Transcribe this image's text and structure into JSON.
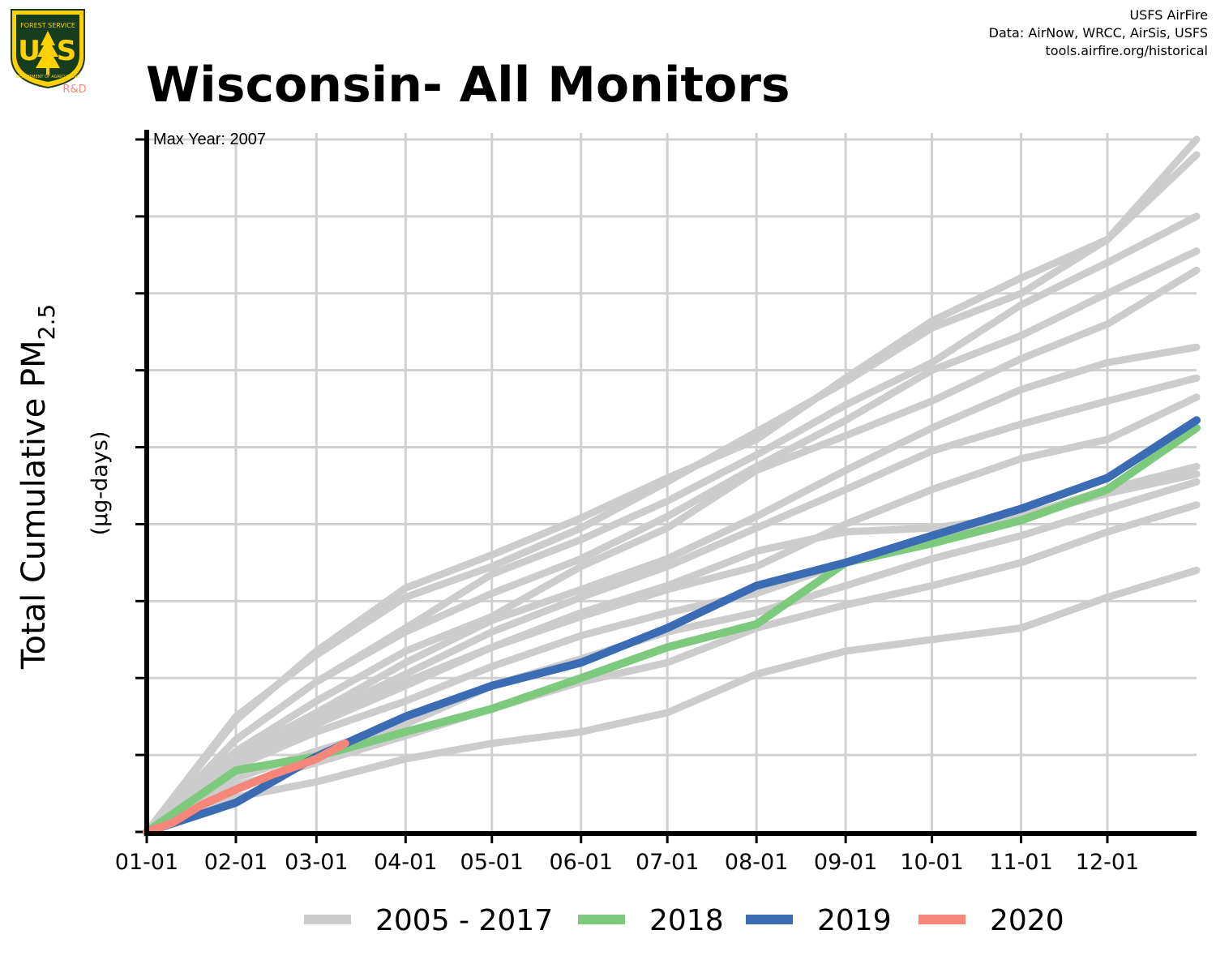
{
  "header": {
    "title": "Wisconsin- All Monitors",
    "credits": [
      "USFS AirFire",
      "Data: AirNow, WRCC, AirSis, USFS",
      "tools.airfire.org/historical"
    ]
  },
  "logo": {
    "text_top": "FOREST SERVICE",
    "text_main": "USFS shield",
    "text_bottom": "DEPARTMENT OF AGRICULTURE",
    "subtext": "R&D"
  },
  "chart_data": {
    "type": "line",
    "title": "Wisconsin- All Monitors",
    "annotation": "Max Year: 2007",
    "ylabel": "Total Cumulative PM2.5",
    "ylabel_main": "Total Cumulative PM",
    "ylabel_sub": "2.5",
    "ylabel_units": "(µg-days)",
    "xlabel": "",
    "x_ticks": [
      "01-01",
      "02-01",
      "03-01",
      "04-01",
      "05-01",
      "06-01",
      "07-01",
      "08-01",
      "09-01",
      "10-01",
      "11-01",
      "12-01"
    ],
    "x_tick_days": [
      1,
      32,
      60,
      91,
      121,
      152,
      182,
      213,
      244,
      274,
      305,
      335
    ],
    "xlim": [
      1,
      366
    ],
    "ylim": [
      0,
      9
    ],
    "y_gridlines": [
      1,
      2,
      3,
      4,
      5,
      6,
      7,
      8,
      9
    ],
    "y_tick_labels_shown": false,
    "grid": true,
    "legend": {
      "placement": "bottom",
      "entries": [
        {
          "label": "2005 - 2017",
          "color": "#cccccc"
        },
        {
          "label": "2018",
          "color": "#7dc97d"
        },
        {
          "label": "2019",
          "color": "#3a6bb3"
        },
        {
          "label": "2020",
          "color": "#f4877a"
        }
      ]
    },
    "series": [
      {
        "group": "2005 - 2017",
        "color": "#cccccc",
        "x": [
          1,
          32,
          60,
          91,
          121,
          152,
          182,
          213,
          244,
          274,
          305,
          335,
          366
        ],
        "y": [
          0,
          1.45,
          2.35,
          3.17,
          3.6,
          4.08,
          4.6,
          5.1,
          5.9,
          6.64,
          7.2,
          7.7,
          9.0
        ]
      },
      {
        "group": "2005 - 2017",
        "color": "#cccccc",
        "x": [
          1,
          32,
          60,
          91,
          121,
          152,
          182,
          213,
          244,
          274,
          305,
          335,
          366
        ],
        "y": [
          0,
          1.5,
          2.3,
          3.05,
          3.45,
          3.95,
          4.55,
          5.2,
          5.85,
          6.55,
          7.0,
          7.7,
          8.8
        ]
      },
      {
        "group": "2005 - 2017",
        "color": "#cccccc",
        "x": [
          1,
          32,
          60,
          91,
          121,
          152,
          182,
          213,
          244,
          274,
          305,
          335,
          366
        ],
        "y": [
          0,
          1.2,
          1.95,
          2.65,
          3.35,
          3.8,
          4.3,
          4.9,
          5.55,
          6.1,
          6.85,
          7.4,
          8.0
        ]
      },
      {
        "group": "2005 - 2017",
        "color": "#cccccc",
        "x": [
          1,
          32,
          60,
          91,
          121,
          152,
          182,
          213,
          244,
          274,
          305,
          335,
          366
        ],
        "y": [
          0,
          1.2,
          1.95,
          2.6,
          3.1,
          3.55,
          4.1,
          4.75,
          5.35,
          6.0,
          6.45,
          7.0,
          7.55
        ]
      },
      {
        "group": "2005 - 2017",
        "color": "#cccccc",
        "x": [
          1,
          32,
          60,
          91,
          121,
          152,
          182,
          213,
          244,
          274,
          305,
          335,
          366
        ],
        "y": [
          0,
          1.05,
          1.7,
          2.35,
          2.8,
          3.45,
          3.95,
          4.7,
          5.15,
          5.6,
          6.15,
          6.6,
          7.3
        ]
      },
      {
        "group": "2005 - 2017",
        "color": "#cccccc",
        "x": [
          1,
          32,
          60,
          91,
          121,
          152,
          182,
          213,
          244,
          274,
          305,
          335,
          366
        ],
        "y": [
          0,
          1.0,
          1.55,
          2.2,
          2.75,
          3.15,
          3.55,
          4.1,
          4.7,
          5.25,
          5.75,
          6.1,
          6.3
        ]
      },
      {
        "group": "2005 - 2017",
        "color": "#cccccc",
        "x": [
          1,
          32,
          60,
          91,
          121,
          152,
          182,
          213,
          244,
          274,
          305,
          335,
          366
        ],
        "y": [
          0,
          0.95,
          1.5,
          2.05,
          2.6,
          3.05,
          3.45,
          3.95,
          4.45,
          4.95,
          5.3,
          5.6,
          5.9
        ]
      },
      {
        "group": "2005 - 2017",
        "color": "#cccccc",
        "x": [
          1,
          32,
          60,
          91,
          121,
          152,
          182,
          213,
          244,
          274,
          305,
          335,
          366
        ],
        "y": [
          0,
          0.95,
          1.45,
          1.95,
          2.4,
          2.8,
          3.15,
          3.45,
          4.0,
          4.45,
          4.85,
          5.1,
          5.65
        ]
      },
      {
        "group": "2005 - 2017",
        "color": "#cccccc",
        "x": [
          1,
          32,
          60,
          91,
          121,
          152,
          182,
          213,
          244,
          274,
          305,
          335,
          366
        ],
        "y": [
          0,
          0.9,
          1.4,
          1.9,
          2.4,
          2.85,
          3.2,
          3.65,
          3.9,
          3.95,
          4.1,
          4.45,
          4.75
        ]
      },
      {
        "group": "2005 - 2017",
        "color": "#cccccc",
        "x": [
          1,
          32,
          60,
          91,
          121,
          152,
          182,
          213,
          244,
          274,
          305,
          335,
          366
        ],
        "y": [
          0,
          0.85,
          1.3,
          1.7,
          2.15,
          2.55,
          2.85,
          3.1,
          3.5,
          3.85,
          4.1,
          4.4,
          4.65
        ]
      },
      {
        "group": "2005 - 2017",
        "color": "#cccccc",
        "x": [
          1,
          32,
          60,
          91,
          121,
          152,
          182,
          213,
          244,
          274,
          305,
          335,
          366
        ],
        "y": [
          0,
          0.7,
          1.05,
          1.4,
          1.9,
          2.25,
          2.6,
          2.85,
          3.2,
          3.55,
          3.85,
          4.2,
          4.55
        ]
      },
      {
        "group": "2005 - 2017",
        "color": "#cccccc",
        "x": [
          1,
          32,
          60,
          91,
          121,
          152,
          182,
          213,
          244,
          274,
          305,
          335,
          366
        ],
        "y": [
          0,
          0.6,
          0.9,
          1.25,
          1.6,
          1.95,
          2.2,
          2.65,
          2.95,
          3.2,
          3.5,
          3.9,
          4.25
        ]
      },
      {
        "group": "2005 - 2017",
        "color": "#cccccc",
        "x": [
          1,
          32,
          60,
          91,
          121,
          152,
          182,
          213,
          244,
          274,
          305,
          335,
          366
        ],
        "y": [
          0,
          0.45,
          0.65,
          0.95,
          1.15,
          1.3,
          1.55,
          2.05,
          2.35,
          2.5,
          2.65,
          3.05,
          3.4
        ]
      },
      {
        "group": "2018",
        "name": "2018",
        "color": "#7dc97d",
        "x": [
          1,
          32,
          60,
          91,
          121,
          152,
          182,
          213,
          244,
          274,
          305,
          335,
          366
        ],
        "y": [
          0,
          0.8,
          0.98,
          1.3,
          1.6,
          2.0,
          2.4,
          2.7,
          3.5,
          3.75,
          4.05,
          4.45,
          5.25
        ]
      },
      {
        "group": "2019",
        "name": "2019",
        "color": "#3a6bb3",
        "x": [
          1,
          32,
          60,
          91,
          121,
          152,
          182,
          213,
          244,
          274,
          305,
          335,
          366
        ],
        "y": [
          0,
          0.38,
          0.98,
          1.5,
          1.9,
          2.2,
          2.65,
          3.2,
          3.5,
          3.85,
          4.2,
          4.6,
          5.35
        ]
      },
      {
        "group": "2020",
        "name": "2020",
        "color": "#f4877a",
        "x": [
          1,
          10,
          20,
          32,
          45,
          55,
          60,
          70
        ],
        "y": [
          0,
          0.12,
          0.35,
          0.55,
          0.75,
          0.88,
          0.95,
          1.15
        ]
      }
    ]
  }
}
